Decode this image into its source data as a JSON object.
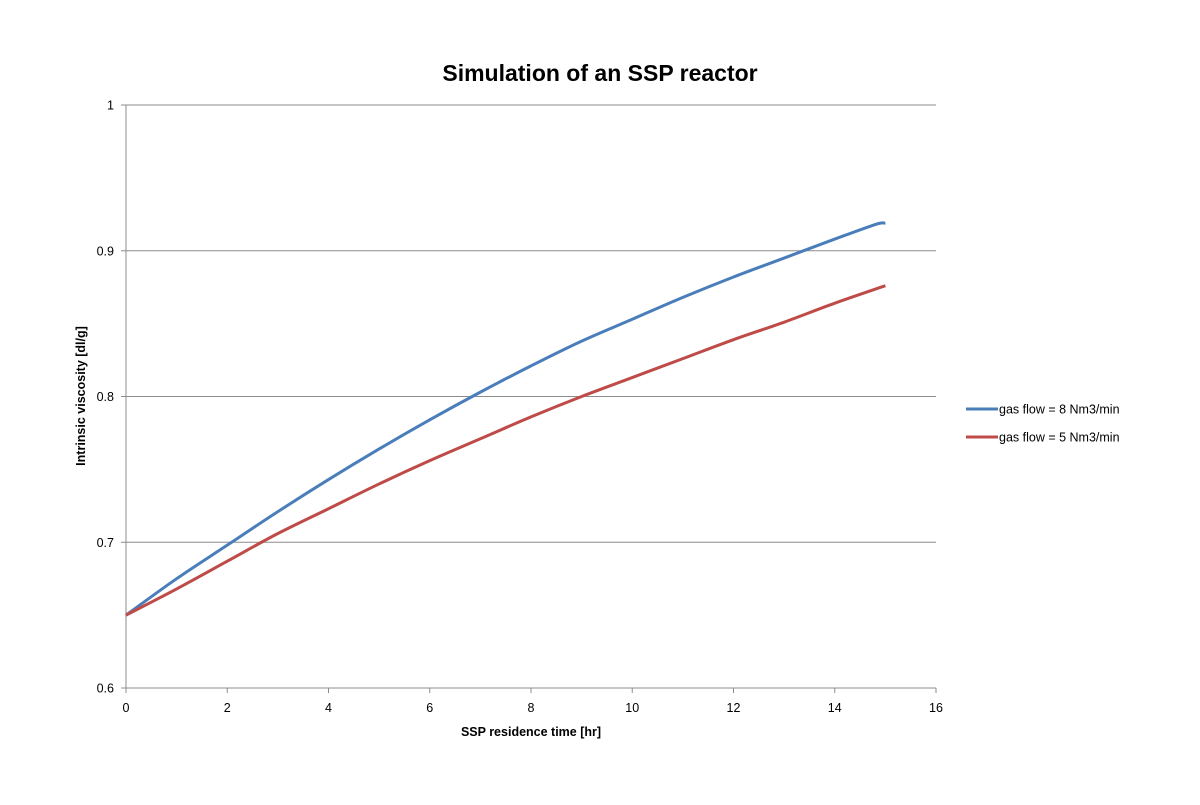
{
  "chart_data": {
    "type": "line",
    "title": "Simulation of an SSP reactor",
    "xlabel": "SSP residence time [hr]",
    "ylabel": "Intrinsic viscosity [dl/g]",
    "xlim": [
      0,
      16
    ],
    "ylim": [
      0.6,
      1.0
    ],
    "x_ticks": [
      0,
      2,
      4,
      6,
      8,
      10,
      12,
      14,
      16
    ],
    "y_ticks": [
      0.6,
      0.7,
      0.8,
      0.9,
      1.0
    ],
    "x_tick_labels": [
      "0",
      "2",
      "4",
      "6",
      "8",
      "10",
      "12",
      "14",
      "16"
    ],
    "y_tick_labels": [
      "0.6",
      "0.7",
      "0.8",
      "0.9",
      "1"
    ],
    "grid": "horizontal",
    "legend_position": "right",
    "series": [
      {
        "name": "gas flow = 8 Nm3/min",
        "color": "#4a7ebb",
        "x": [
          0,
          1,
          2,
          3,
          4,
          5,
          6,
          7,
          8,
          9,
          10,
          11,
          12,
          13,
          14,
          14.8,
          15
        ],
        "y": [
          0.65,
          0.675,
          0.698,
          0.721,
          0.743,
          0.764,
          0.784,
          0.803,
          0.821,
          0.838,
          0.853,
          0.868,
          0.882,
          0.895,
          0.908,
          0.918,
          0.919
        ]
      },
      {
        "name": "gas flow = 5 Nm3/min",
        "color": "#be4b48",
        "x": [
          0,
          1,
          2,
          3,
          4,
          5,
          6,
          7,
          8,
          9,
          10,
          11,
          12,
          13,
          14,
          15
        ],
        "y": [
          0.65,
          0.668,
          0.687,
          0.706,
          0.723,
          0.74,
          0.756,
          0.771,
          0.786,
          0.8,
          0.813,
          0.826,
          0.839,
          0.851,
          0.864,
          0.876
        ]
      }
    ]
  }
}
